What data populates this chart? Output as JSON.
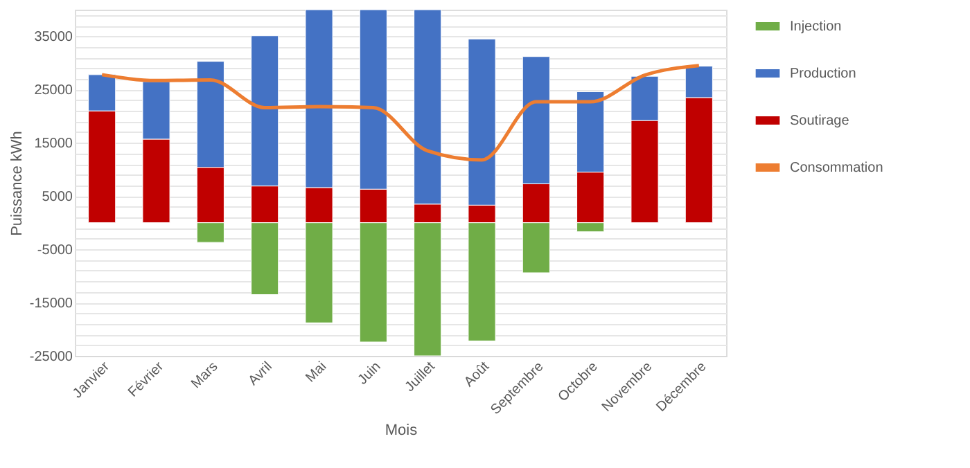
{
  "chart_data": {
    "type": "bar",
    "stacked": true,
    "xlabel": "Mois",
    "ylabel": "Puissance kWh",
    "categories": [
      "Janvier",
      "Février",
      "Mars",
      "Avril",
      "Mai",
      "Juin",
      "Juillet",
      "Août",
      "Septembre",
      "Octobre",
      "Novembre",
      "Décembre"
    ],
    "series": [
      {
        "name": "Soutirage",
        "color": "#c00000",
        "values": [
          21000,
          15700,
          10400,
          6900,
          6600,
          6300,
          3500,
          3300,
          7300,
          9500,
          19200,
          23500
        ]
      },
      {
        "name": "Production",
        "color": "#4472c4",
        "values": [
          6800,
          10800,
          19900,
          28200,
          33400,
          33700,
          36500,
          31200,
          23900,
          15100,
          8300,
          5900
        ]
      },
      {
        "name": "Injection",
        "color": "#70ad47",
        "values": [
          null,
          null,
          -3700,
          -13500,
          -18800,
          -22400,
          -25000,
          -22200,
          -9400,
          -1700,
          null,
          null
        ]
      },
      {
        "name": "Consommation",
        "type": "line",
        "color": "#ed7d31",
        "values": [
          27800,
          26700,
          26800,
          21600,
          21800,
          21600,
          13500,
          11800,
          22700,
          22700,
          27700,
          29500
        ]
      }
    ],
    "ylim": [
      -25000,
      40000
    ],
    "yticks": [
      -25000,
      {
        "value": -23000,
        "label": null
      },
      {
        "value": -21000,
        "label": null
      },
      {
        "value": -19000,
        "label": null
      },
      {
        "value": -17000,
        "label": null
      },
      -15000,
      {
        "value": -13000,
        "label": null
      },
      {
        "value": -11000,
        "label": null
      },
      {
        "value": -9000,
        "label": null
      },
      {
        "value": -7000,
        "label": null
      },
      -5000,
      {
        "value": -3000,
        "label": null
      },
      {
        "value": -1000,
        "label": null
      },
      {
        "value": 1000,
        "label": null
      },
      {
        "value": 3000,
        "label": null
      },
      5000,
      {
        "value": 7000,
        "label": null
      },
      {
        "value": 9000,
        "label": null
      },
      {
        "value": 11000,
        "label": null
      },
      {
        "value": 13000,
        "label": null
      },
      15000,
      {
        "value": 17000,
        "label": null
      },
      {
        "value": 19000,
        "label": null
      },
      {
        "value": 21000,
        "label": null
      },
      {
        "value": 23000,
        "label": null
      },
      25000,
      {
        "value": 27000,
        "label": null
      },
      {
        "value": 29000,
        "label": null
      },
      {
        "value": 31000,
        "label": null
      },
      {
        "value": 33000,
        "label": null
      },
      35000,
      {
        "value": 37000,
        "label": null
      },
      {
        "value": 39000,
        "label": null
      }
    ],
    "grid": "y",
    "legend": "right"
  }
}
